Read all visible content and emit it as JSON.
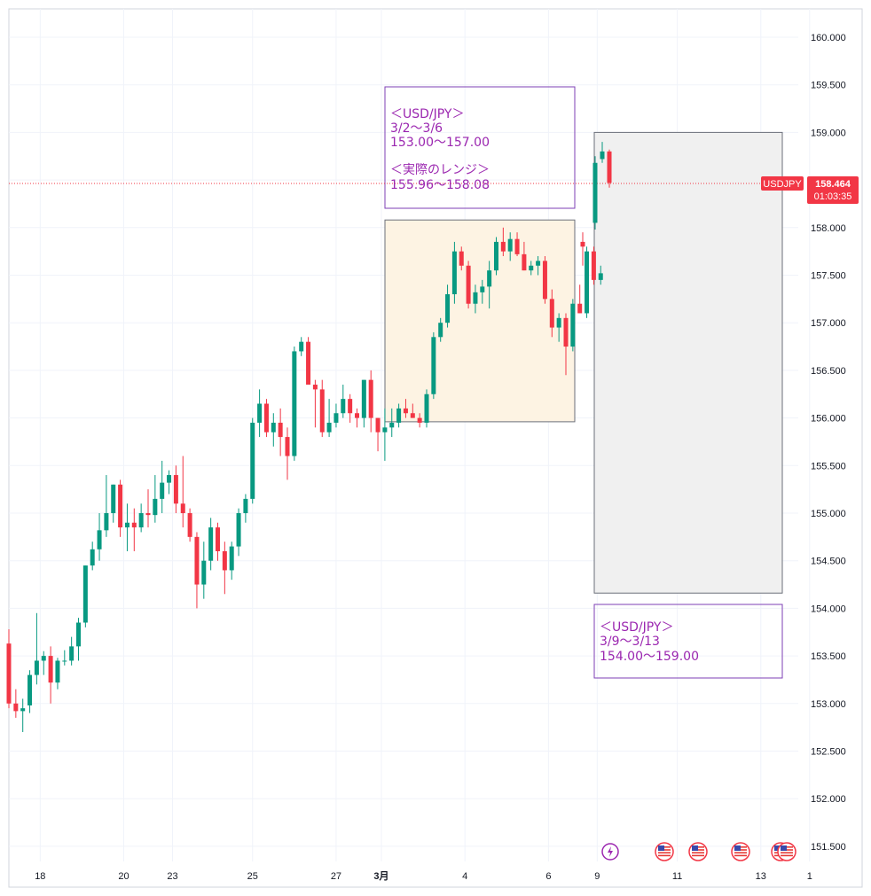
{
  "chart_data": {
    "type": "candlestick",
    "symbol": "USDJPY",
    "y_range": [
      151.22,
      160.32
    ],
    "y_ticks": [
      "160.000",
      "159.500",
      "159.000",
      "158.500",
      "158.000",
      "157.500",
      "157.000",
      "156.500",
      "156.000",
      "155.500",
      "155.000",
      "154.500",
      "154.000",
      "153.500",
      "153.000",
      "152.500",
      "152.000",
      "151.500"
    ],
    "x_ticks": [
      {
        "label": "18",
        "bold": false,
        "index": 4.5
      },
      {
        "label": "20",
        "bold": false,
        "index": 16.5
      },
      {
        "label": "23",
        "bold": false,
        "index": 23.5
      },
      {
        "label": "25",
        "bold": false,
        "index": 35
      },
      {
        "label": "27",
        "bold": false,
        "index": 47
      },
      {
        "label": "3月",
        "bold": true,
        "index": 53.5
      },
      {
        "label": "4",
        "bold": false,
        "index": 65.5
      },
      {
        "label": "6",
        "bold": false,
        "index": 77.5
      },
      {
        "label": "9",
        "bold": false,
        "index": 84.5
      },
      {
        "label": "11",
        "bold": false,
        "index": 96
      },
      {
        "label": "13",
        "bold": false,
        "index": 108
      },
      {
        "label": "1",
        "bold": false,
        "index": 115
      }
    ],
    "candles": [
      [
        153.63,
        153.78,
        152.95,
        153.0
      ],
      [
        153.0,
        153.15,
        152.85,
        152.92
      ],
      [
        152.92,
        153.05,
        152.7,
        152.95
      ],
      [
        152.98,
        153.35,
        152.9,
        153.3
      ],
      [
        153.3,
        153.95,
        153.2,
        153.45
      ],
      [
        153.45,
        153.55,
        153.3,
        153.5
      ],
      [
        153.5,
        153.6,
        153.0,
        153.22
      ],
      [
        153.22,
        153.48,
        153.15,
        153.45
      ],
      [
        153.45,
        153.56,
        153.4,
        153.45
      ],
      [
        153.45,
        153.7,
        153.4,
        153.6
      ],
      [
        153.6,
        153.9,
        153.45,
        153.85
      ],
      [
        153.85,
        154.45,
        153.8,
        154.45
      ],
      [
        154.45,
        154.7,
        154.4,
        154.62
      ],
      [
        154.62,
        155.0,
        154.5,
        154.82
      ],
      [
        154.82,
        155.4,
        154.75,
        155.0
      ],
      [
        155.0,
        155.3,
        154.9,
        155.3
      ],
      [
        155.3,
        155.35,
        154.75,
        154.85
      ],
      [
        154.85,
        155.1,
        154.6,
        154.9
      ],
      [
        154.9,
        155.05,
        154.6,
        154.85
      ],
      [
        154.85,
        155.1,
        154.8,
        155.0
      ],
      [
        155.0,
        155.25,
        154.85,
        154.98
      ],
      [
        154.98,
        155.4,
        154.9,
        155.15
      ],
      [
        155.15,
        155.55,
        155.0,
        155.32
      ],
      [
        155.32,
        155.45,
        155.2,
        155.4
      ],
      [
        155.4,
        155.5,
        155.0,
        155.1
      ],
      [
        155.1,
        155.6,
        154.85,
        155.0
      ],
      [
        155.0,
        155.05,
        154.7,
        154.75
      ],
      [
        154.75,
        154.8,
        154.0,
        154.25
      ],
      [
        154.25,
        154.7,
        154.1,
        154.5
      ],
      [
        154.5,
        154.95,
        154.4,
        154.85
      ],
      [
        154.85,
        154.9,
        154.5,
        154.6
      ],
      [
        154.6,
        154.7,
        154.15,
        154.4
      ],
      [
        154.4,
        154.7,
        154.3,
        154.65
      ],
      [
        154.65,
        155.05,
        154.55,
        155.0
      ],
      [
        155.0,
        155.2,
        154.9,
        155.15
      ],
      [
        155.15,
        156.0,
        155.1,
        155.95
      ],
      [
        155.95,
        156.3,
        155.8,
        156.15
      ],
      [
        156.15,
        156.2,
        155.8,
        155.85
      ],
      [
        155.85,
        156.05,
        155.7,
        155.95
      ],
      [
        155.95,
        156.1,
        155.6,
        155.8
      ],
      [
        155.8,
        155.9,
        155.35,
        155.6
      ],
      [
        155.6,
        156.75,
        155.55,
        156.7
      ],
      [
        156.7,
        156.85,
        156.65,
        156.8
      ],
      [
        156.8,
        156.85,
        156.35,
        156.35
      ],
      [
        156.35,
        156.4,
        155.9,
        156.3
      ],
      [
        156.3,
        156.4,
        155.8,
        155.85
      ],
      [
        155.85,
        156.2,
        155.8,
        155.95
      ],
      [
        155.95,
        156.15,
        155.9,
        156.05
      ],
      [
        156.05,
        156.35,
        156.0,
        156.2
      ],
      [
        156.2,
        156.25,
        155.95,
        156.05
      ],
      [
        156.05,
        156.1,
        155.9,
        156.0
      ],
      [
        156.0,
        156.4,
        155.9,
        156.4
      ],
      [
        156.4,
        156.5,
        155.85,
        156.0
      ],
      [
        156.0,
        156.0,
        155.65,
        155.85
      ],
      [
        155.85,
        156.1,
        155.55,
        155.9
      ],
      [
        155.9,
        156.1,
        155.8,
        155.95
      ],
      [
        155.95,
        156.15,
        155.9,
        156.1
      ],
      [
        156.1,
        156.2,
        156.0,
        156.05
      ],
      [
        156.05,
        156.15,
        156.0,
        156.0
      ],
      [
        156.0,
        156.05,
        155.9,
        155.95
      ],
      [
        155.95,
        156.3,
        155.9,
        156.25
      ],
      [
        156.25,
        156.9,
        156.2,
        156.85
      ],
      [
        156.85,
        157.05,
        156.8,
        157.0
      ],
      [
        157.0,
        157.4,
        156.95,
        157.3
      ],
      [
        157.3,
        157.85,
        157.2,
        157.75
      ],
      [
        157.75,
        157.8,
        157.55,
        157.6
      ],
      [
        157.6,
        157.65,
        157.15,
        157.2
      ],
      [
        157.2,
        157.4,
        157.1,
        157.32
      ],
      [
        157.32,
        157.45,
        157.2,
        157.38
      ],
      [
        157.38,
        157.65,
        157.15,
        157.55
      ],
      [
        157.55,
        157.9,
        157.5,
        157.85
      ],
      [
        157.85,
        158.0,
        157.7,
        157.75
      ],
      [
        157.75,
        157.95,
        157.65,
        157.88
      ],
      [
        157.88,
        157.95,
        157.7,
        157.72
      ],
      [
        157.72,
        157.85,
        157.55,
        157.55
      ],
      [
        157.55,
        157.65,
        157.5,
        157.6
      ],
      [
        157.6,
        157.7,
        157.5,
        157.65
      ],
      [
        157.65,
        157.7,
        157.2,
        157.25
      ],
      [
        157.25,
        157.35,
        156.85,
        156.95
      ],
      [
        156.95,
        157.1,
        156.8,
        157.05
      ],
      [
        157.05,
        157.1,
        156.45,
        156.75
      ],
      [
        156.75,
        157.25,
        156.7,
        157.2
      ],
      [
        157.2,
        157.4,
        157.1,
        157.1
      ],
      [
        157.1,
        157.8,
        157.05,
        157.75
      ],
      [
        157.75,
        157.8,
        157.4,
        157.45
      ],
      [
        157.45,
        157.6,
        157.4,
        157.52
      ]
    ],
    "current_price": "158.464",
    "price_label": "USDJPY",
    "countdown": "01:03:35",
    "colors": {
      "up": "#089981",
      "down": "#f23645",
      "annotation": "#9b27b0",
      "price_tag": "#f23645"
    },
    "annotations": [
      {
        "lines": [
          "＜USD/JPY＞",
          "3/2〜3/6",
          "153.00〜157.00",
          "",
          "＜実際のレンジ＞",
          "155.96〜158.08"
        ]
      },
      {
        "lines": [
          "＜USD/JPY＞",
          "3/9〜3/13",
          "154.00〜159.00"
        ]
      }
    ],
    "icons": [
      "lightning-event-icon",
      "us-flag-icon",
      "us-flag-icon",
      "us-flag-icon",
      "us-flag-icon"
    ]
  },
  "header_text": "…"
}
